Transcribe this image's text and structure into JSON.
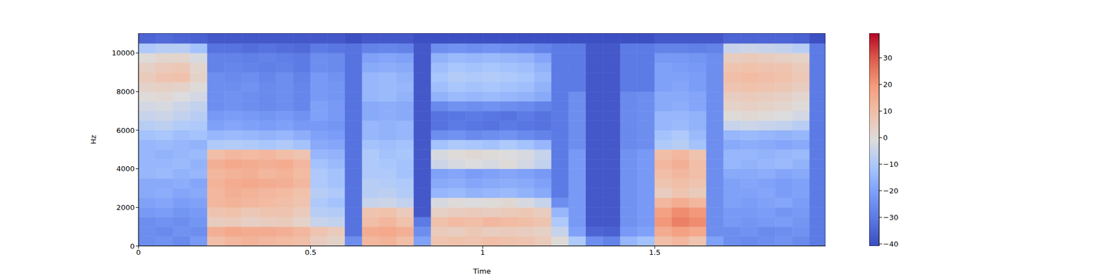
{
  "chart_data": {
    "type": "heatmap",
    "x_label": "Time",
    "y_label": "Hz",
    "color": "coolwarm",
    "xlim": [
      0,
      1.996
    ],
    "ylim": [
      0,
      11025
    ],
    "xticks": [
      0,
      0.5,
      1,
      1.5
    ],
    "yticks": [
      0,
      2000,
      4000,
      6000,
      8000,
      10000
    ],
    "x": [
      0,
      0.05,
      0.1,
      0.15,
      0.2,
      0.25,
      0.3,
      0.35,
      0.4,
      0.45,
      0.5,
      0.55,
      0.6,
      0.65,
      0.7,
      0.75,
      0.8,
      0.85,
      0.9,
      0.95,
      1,
      1.05,
      1.1,
      1.15,
      1.2,
      1.25,
      1.3,
      1.35,
      1.4,
      1.45,
      1.5,
      1.55,
      1.6,
      1.65,
      1.7,
      1.75,
      1.8,
      1.85,
      1.9,
      1.95,
      1.996
    ],
    "y": [
      0,
      500,
      1000,
      1500,
      2000,
      2500,
      3000,
      3500,
      4000,
      4500,
      5000,
      5500,
      6000,
      6500,
      7000,
      7500,
      8000,
      8500,
      9000,
      9500,
      10000,
      10500,
      11025
    ],
    "cells": [
      [
        -25,
        -24,
        -26,
        -22,
        10,
        12,
        13,
        12,
        11,
        10,
        5,
        3,
        -25,
        12,
        13,
        10,
        -20,
        8,
        9,
        8,
        10,
        9,
        8,
        6,
        0,
        -10,
        -25,
        -28,
        -15,
        -12,
        10,
        12,
        8,
        -20,
        -25,
        -26,
        -25,
        -24,
        -26,
        -30
      ],
      [
        -25,
        -26,
        -24,
        -25,
        14,
        16,
        15,
        15,
        14,
        12,
        8,
        6,
        -32,
        15,
        16,
        14,
        -25,
        6,
        5,
        7,
        5,
        6,
        5,
        4,
        -5,
        -20,
        -35,
        -36,
        -22,
        -20,
        15,
        18,
        16,
        -25,
        -25,
        -24,
        -26,
        -25,
        -24,
        -30
      ],
      [
        -25,
        -24,
        -25,
        -23,
        5,
        6,
        4,
        5,
        6,
        3,
        -5,
        -6,
        -32,
        10,
        12,
        9,
        -30,
        9,
        11,
        10,
        12,
        11,
        10,
        8,
        -10,
        -22,
        -38,
        -38,
        -24,
        -22,
        20,
        24,
        22,
        -25,
        -22,
        -23,
        -22,
        -21,
        -23,
        -30
      ],
      [
        -22,
        -21,
        -23,
        -22,
        8,
        9,
        7,
        8,
        8,
        6,
        -8,
        -9,
        -32,
        8,
        9,
        6,
        -38,
        4,
        5,
        6,
        5,
        6,
        7,
        5,
        -15,
        -22,
        -38,
        -38,
        -24,
        -22,
        18,
        22,
        20,
        -25,
        -22,
        -22,
        -21,
        -23,
        -22,
        -30
      ],
      [
        -20,
        -19,
        -21,
        -20,
        12,
        13,
        12,
        11,
        10,
        8,
        -10,
        -12,
        -32,
        -5,
        -4,
        -6,
        -38,
        -2,
        0,
        -1,
        0,
        1,
        -2,
        -5,
        -25,
        -22,
        -38,
        -38,
        -24,
        -22,
        12,
        15,
        12,
        -25,
        -20,
        -21,
        -20,
        -19,
        -21,
        -30
      ],
      [
        -18,
        -17,
        -19,
        -18,
        12,
        14,
        13,
        12,
        11,
        9,
        -8,
        -10,
        -32,
        -8,
        -7,
        -9,
        -38,
        -15,
        -14,
        -16,
        -15,
        -14,
        -16,
        -18,
        -30,
        -22,
        -38,
        -38,
        -24,
        -22,
        5,
        8,
        6,
        -25,
        -20,
        -20,
        -19,
        -21,
        -20,
        -30
      ],
      [
        -18,
        -18,
        -17,
        -19,
        13,
        15,
        16,
        15,
        14,
        12,
        -10,
        -12,
        -32,
        -8,
        -9,
        -10,
        -38,
        -18,
        -17,
        -19,
        -18,
        -17,
        -18,
        -20,
        -30,
        -22,
        -38,
        -38,
        -24,
        -22,
        8,
        10,
        8,
        -25,
        -20,
        -19,
        -20,
        -21,
        -20,
        -30
      ],
      [
        -15,
        -14,
        -16,
        -15,
        12,
        13,
        14,
        12,
        13,
        11,
        -10,
        -12,
        -32,
        -10,
        -10,
        -12,
        -38,
        -20,
        -19,
        -21,
        -20,
        -19,
        -20,
        -22,
        -30,
        -22,
        -38,
        -38,
        -24,
        -22,
        10,
        12,
        10,
        -25,
        -18,
        -18,
        -17,
        -19,
        -18,
        -30
      ],
      [
        -15,
        -15,
        -14,
        -16,
        14,
        16,
        15,
        14,
        15,
        12,
        -12,
        -14,
        -32,
        -10,
        -11,
        -12,
        -38,
        -4,
        -2,
        -1,
        -2,
        0,
        -3,
        -6,
        -30,
        -22,
        -38,
        -38,
        -24,
        -22,
        12,
        14,
        10,
        -25,
        -15,
        -16,
        -15,
        -14,
        -16,
        -30
      ],
      [
        -15,
        -16,
        -15,
        -14,
        10,
        12,
        11,
        12,
        10,
        8,
        -15,
        -16,
        -32,
        -10,
        -12,
        -11,
        -38,
        -2,
        0,
        1,
        0,
        -1,
        -2,
        -5,
        -30,
        -22,
        -38,
        -38,
        -24,
        -22,
        10,
        12,
        8,
        -25,
        -15,
        -15,
        -16,
        -15,
        -14,
        -30
      ],
      [
        -15,
        -14,
        -15,
        -16,
        -10,
        -9,
        -10,
        -11,
        -10,
        -12,
        -18,
        -19,
        -32,
        -12,
        -13,
        -12,
        -38,
        -12,
        -10,
        -11,
        -12,
        -10,
        -12,
        -15,
        -30,
        -25,
        -38,
        -38,
        -26,
        -25,
        -10,
        -8,
        -12,
        -25,
        -18,
        -17,
        -18,
        -19,
        -18,
        -30
      ],
      [
        -12,
        -11,
        -13,
        -12,
        -15,
        -14,
        -15,
        -16,
        -15,
        -17,
        -20,
        -21,
        -32,
        -15,
        -16,
        -15,
        -38,
        -25,
        -24,
        -26,
        -25,
        -24,
        -26,
        -28,
        -30,
        -25,
        -38,
        -38,
        -26,
        -25,
        -12,
        -10,
        -14,
        -25,
        -15,
        -14,
        -15,
        -16,
        -15,
        -30
      ],
      [
        -8,
        -7,
        -9,
        -10,
        -20,
        -19,
        -20,
        -21,
        -20,
        -22,
        -22,
        -23,
        -32,
        -15,
        -16,
        -15,
        -38,
        -32,
        -30,
        -31,
        -32,
        -30,
        -31,
        -32,
        -30,
        -25,
        -38,
        -38,
        -26,
        -25,
        -15,
        -14,
        -16,
        -25,
        -5,
        -4,
        -5,
        -6,
        -8,
        -30
      ],
      [
        -5,
        -4,
        -6,
        -8,
        -22,
        -21,
        -22,
        -23,
        -22,
        -24,
        -20,
        -22,
        -32,
        -18,
        -17,
        -18,
        -38,
        -32,
        -31,
        -30,
        -31,
        -32,
        -30,
        -32,
        -30,
        -25,
        -38,
        -38,
        -26,
        -25,
        -15,
        -15,
        -16,
        -25,
        0,
        1,
        0,
        -1,
        -3,
        -30
      ],
      [
        -3,
        -2,
        -4,
        -6,
        -25,
        -24,
        -25,
        -26,
        -25,
        -27,
        -20,
        -22,
        -32,
        -18,
        -17,
        -18,
        -38,
        -26,
        -24,
        -25,
        -24,
        -25,
        -26,
        -28,
        -30,
        -25,
        -38,
        -38,
        -26,
        -25,
        -18,
        -17,
        -19,
        -25,
        3,
        4,
        3,
        2,
        0,
        -30
      ],
      [
        0,
        1,
        -1,
        -3,
        -25,
        -24,
        -25,
        -26,
        -25,
        -27,
        -22,
        -23,
        -32,
        -15,
        -14,
        -16,
        -38,
        -16,
        -14,
        -15,
        -14,
        -15,
        -16,
        -18,
        -30,
        -25,
        -38,
        -38,
        -26,
        -25,
        -18,
        -18,
        -19,
        -25,
        5,
        6,
        5,
        4,
        2,
        -30
      ],
      [
        3,
        4,
        3,
        0,
        -25,
        -25,
        -24,
        -26,
        -25,
        -27,
        -22,
        -23,
        -32,
        -15,
        -14,
        -15,
        -38,
        -13,
        -11,
        -12,
        -11,
        -12,
        -13,
        -16,
        -30,
        -30,
        -38,
        -38,
        -30,
        -30,
        -20,
        -19,
        -21,
        -25,
        8,
        9,
        8,
        7,
        5,
        -30
      ],
      [
        6,
        8,
        9,
        3,
        -25,
        -26,
        -25,
        -27,
        -25,
        -28,
        -22,
        -24,
        -32,
        -15,
        -14,
        -16,
        -38,
        -11,
        -9,
        -10,
        -9,
        -10,
        -11,
        -14,
        -30,
        -30,
        -38,
        -38,
        -30,
        -30,
        -20,
        -20,
        -21,
        -25,
        10,
        11,
        10,
        9,
        7,
        -30
      ],
      [
        4,
        6,
        7,
        2,
        -28,
        -27,
        -28,
        -29,
        -28,
        -30,
        -25,
        -26,
        -32,
        -18,
        -17,
        -18,
        -38,
        -13,
        -11,
        -12,
        -11,
        -12,
        -13,
        -16,
        -30,
        -30,
        -38,
        -38,
        -30,
        -30,
        -20,
        -21,
        -22,
        -25,
        8,
        9,
        8,
        8,
        6,
        -30
      ],
      [
        0,
        2,
        2,
        -2,
        -28,
        -28,
        -29,
        -28,
        -29,
        -30,
        -25,
        -26,
        -32,
        -20,
        -19,
        -20,
        -38,
        -16,
        -14,
        -15,
        -14,
        -15,
        -16,
        -19,
        -30,
        -30,
        -38,
        -38,
        -30,
        -30,
        -22,
        -22,
        -23,
        -25,
        5,
        6,
        5,
        4,
        3,
        -30
      ],
      [
        -10,
        -8,
        -8,
        -12,
        -32,
        -32,
        -33,
        -32,
        -33,
        -34,
        -30,
        -31,
        -32,
        -28,
        -27,
        -28,
        -38,
        -25,
        -24,
        -25,
        -24,
        -25,
        -26,
        -28,
        -30,
        -30,
        -38,
        -38,
        -30,
        -30,
        -28,
        -28,
        -29,
        -28,
        -5,
        -4,
        -5,
        -6,
        -8,
        -30
      ],
      [
        -35,
        -34,
        -35,
        -36,
        -38,
        -38,
        -38,
        -38,
        -38,
        -38,
        -38,
        -38,
        -40,
        -38,
        -38,
        -38,
        -40,
        -40,
        -40,
        -40,
        -40,
        -40,
        -40,
        -40,
        -40,
        -40,
        -40,
        -40,
        -40,
        -40,
        -38,
        -38,
        -38,
        -38,
        -35,
        -35,
        -35,
        -35,
        -36,
        -40
      ]
    ],
    "colorbar": {
      "range": [
        -40.8,
        39.3
      ],
      "ticks": [
        {
          "value": -40,
          "label": "−40"
        },
        {
          "value": -30,
          "label": "−30"
        },
        {
          "value": -20,
          "label": "−20"
        },
        {
          "value": -10,
          "label": "−10"
        },
        0,
        10,
        20,
        30
      ]
    }
  }
}
